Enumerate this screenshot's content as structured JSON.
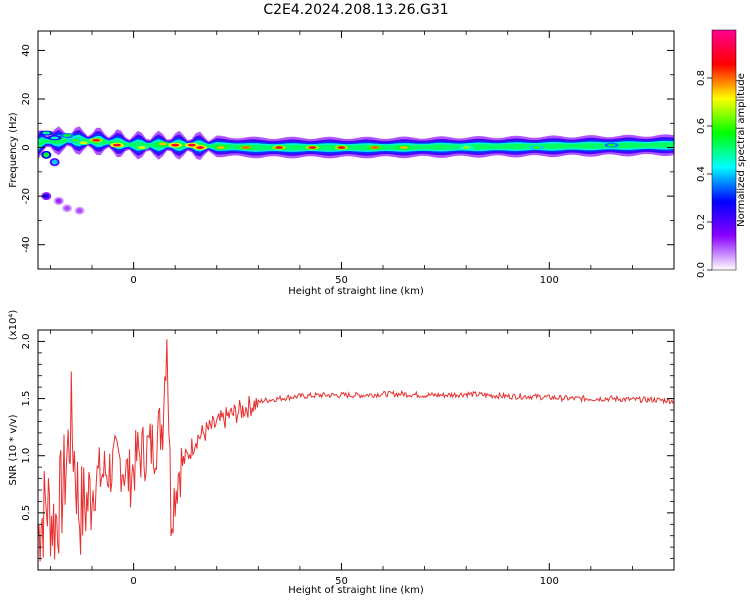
{
  "figure": {
    "title": "C2E4.2024.208.13.26.G31"
  },
  "chart_data": [
    {
      "type": "heatmap",
      "xlabel": "Height of straight line (km)",
      "ylabel": "Frequency (Hz)",
      "xlim": [
        -23,
        130
      ],
      "ylim": [
        -50,
        48
      ],
      "xticks": [
        0,
        50,
        100
      ],
      "yticks": [
        40,
        20,
        0,
        -20,
        -40
      ],
      "colorbar": {
        "label": "Normalized spectral amplitude",
        "range": [
          0,
          1
        ],
        "ticks": [
          "0.0",
          "0.2",
          "0.4",
          "0.6",
          "0.8"
        ],
        "colormap": [
          "#ffffff",
          "#8a00ff",
          "#0000ff",
          "#00ffff",
          "#00ff00",
          "#ffff00",
          "#ff0000",
          "#ff0090"
        ]
      },
      "ridge_center_hz": [
        {
          "x": -22,
          "f": 2.5
        },
        {
          "x": -15,
          "f": 3
        },
        {
          "x": -8,
          "f": 2.5
        },
        {
          "x": 0,
          "f": 1
        },
        {
          "x": 10,
          "f": 1
        },
        {
          "x": 20,
          "f": 0.5
        },
        {
          "x": 30,
          "f": 0
        },
        {
          "x": 60,
          "f": 0
        },
        {
          "x": 100,
          "f": 0.5
        },
        {
          "x": 130,
          "f": 1
        }
      ],
      "hotspots": [
        {
          "x": -21,
          "f": 6,
          "amp": 0.5
        },
        {
          "x": -19,
          "f": 4,
          "amp": 0.45
        },
        {
          "x": -16,
          "f": 5,
          "amp": 0.55
        },
        {
          "x": -14,
          "f": 3,
          "amp": 0.6
        },
        {
          "x": -12,
          "f": 2,
          "amp": 0.7
        },
        {
          "x": -9,
          "f": 3,
          "amp": 0.85
        },
        {
          "x": -4,
          "f": 1,
          "amp": 0.9
        },
        {
          "x": 2,
          "f": 0,
          "amp": 0.7
        },
        {
          "x": 7,
          "f": 1.5,
          "amp": 0.75
        },
        {
          "x": 10,
          "f": 1,
          "amp": 0.9
        },
        {
          "x": 14,
          "f": 1,
          "amp": 0.9
        },
        {
          "x": 16,
          "f": 0,
          "amp": 0.9
        },
        {
          "x": 21,
          "f": 0,
          "amp": 0.75
        },
        {
          "x": 27,
          "f": 0,
          "amp": 0.8
        },
        {
          "x": 35,
          "f": 0,
          "amp": 0.85
        },
        {
          "x": 43,
          "f": 0,
          "amp": 0.85
        },
        {
          "x": 50,
          "f": 0,
          "amp": 0.85
        },
        {
          "x": 58,
          "f": 0,
          "amp": 0.8
        },
        {
          "x": 65,
          "f": 0,
          "amp": 0.75
        },
        {
          "x": 80,
          "f": 0,
          "amp": 0.65
        },
        {
          "x": 97,
          "f": 0,
          "amp": 0.6
        },
        {
          "x": 115,
          "f": 1,
          "amp": 0.55
        }
      ],
      "side_blobs": [
        {
          "x": -21,
          "f": -3,
          "amp": 0.55
        },
        {
          "x": -19,
          "f": -6,
          "amp": 0.4
        },
        {
          "x": -21,
          "f": -20,
          "amp": 0.25
        },
        {
          "x": -18,
          "f": -22,
          "amp": 0.12
        },
        {
          "x": -16,
          "f": -25,
          "amp": 0.1
        },
        {
          "x": -13,
          "f": -26,
          "amp": 0.1
        }
      ]
    },
    {
      "type": "line",
      "xlabel": "Height of straight line (km)",
      "ylabel": "SNR (10 * v/v)",
      "yexponent": "(x10⁴)",
      "xlim": [
        -23,
        130
      ],
      "ylim": [
        0,
        2.1
      ],
      "xticks": [
        0,
        50,
        100
      ],
      "yticks": [
        0.5,
        1.0,
        1.5,
        2.0
      ],
      "line_color": "#e83030",
      "series": [
        {
          "x": [
            -23,
            -21,
            -19,
            -17,
            -15,
            -13,
            -11,
            -9,
            -7,
            -5,
            -3,
            -1,
            1,
            3,
            5,
            7,
            8,
            9,
            11,
            13,
            15,
            17,
            19,
            21,
            23,
            25,
            27,
            29,
            31,
            33,
            35,
            37,
            40,
            45,
            50,
            55,
            60,
            65,
            70,
            75,
            80,
            85,
            90,
            95,
            100,
            105,
            110,
            115,
            120,
            125,
            130
          ],
          "y": [
            0.3,
            0.6,
            0.4,
            0.7,
            1.3,
            0.5,
            0.6,
            0.8,
            0.85,
            0.9,
            0.95,
            0.8,
            1.0,
            1.05,
            1.1,
            1.3,
            2.1,
            0.5,
            0.9,
            1.0,
            1.15,
            1.2,
            1.25,
            1.3,
            1.35,
            1.38,
            1.42,
            1.45,
            1.48,
            1.49,
            1.5,
            1.51,
            1.52,
            1.53,
            1.53,
            1.53,
            1.54,
            1.54,
            1.53,
            1.53,
            1.54,
            1.53,
            1.52,
            1.52,
            1.51,
            1.5,
            1.5,
            1.5,
            1.49,
            1.49,
            1.48
          ]
        }
      ]
    }
  ]
}
